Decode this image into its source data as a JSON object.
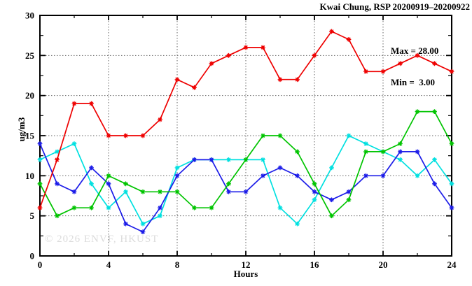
{
  "chart_data": {
    "type": "line",
    "title": "Kwai Chung, RSP 20200919–20200922",
    "xlabel": "Hours",
    "ylabel": "ug/m3",
    "xlim": [
      0,
      24
    ],
    "ylim": [
      0,
      30
    ],
    "x_ticks": [
      0,
      4,
      8,
      12,
      16,
      20,
      24
    ],
    "y_ticks": [
      0,
      5,
      10,
      15,
      20,
      25,
      30
    ],
    "x_minor_step": 2,
    "y_minor_step": 2.5,
    "grid": true,
    "x": [
      0,
      1,
      2,
      3,
      4,
      5,
      6,
      7,
      8,
      9,
      10,
      11,
      12,
      13,
      14,
      15,
      16,
      17,
      18,
      19,
      20,
      21,
      22,
      23,
      24
    ],
    "series": [
      {
        "name": "cyan-line",
        "color": "#00e0e0",
        "values": [
          12,
          13,
          14,
          9,
          6,
          8,
          4,
          5,
          11,
          12,
          12,
          12,
          12,
          12,
          6,
          4,
          7,
          11,
          15,
          14,
          13,
          12,
          10,
          12,
          9
        ]
      },
      {
        "name": "blue-line",
        "color": "#1c1ce8",
        "values": [
          14,
          9,
          8,
          11,
          9,
          4,
          3,
          6,
          10,
          12,
          12,
          8,
          8,
          10,
          11,
          10,
          8,
          7,
          8,
          10,
          10,
          13,
          13,
          9,
          6
        ]
      },
      {
        "name": "green-line",
        "color": "#00c400",
        "values": [
          9,
          5,
          6,
          6,
          10,
          9,
          8,
          8,
          8,
          6,
          6,
          9,
          12,
          15,
          15,
          13,
          9,
          5,
          7,
          13,
          13,
          14,
          18,
          18,
          14
        ]
      },
      {
        "name": "red-line",
        "color": "#ee0000",
        "values": [
          6,
          12,
          19,
          19,
          15,
          15,
          15,
          17,
          22,
          21,
          24,
          25,
          26,
          26,
          22,
          22,
          25,
          28,
          27,
          23,
          23,
          24,
          25,
          24,
          23
        ]
      }
    ]
  },
  "legend": {
    "max_label": "Max = 28.00",
    "min_label": "Min =  3.00"
  },
  "watermark": "© 2026 ENVF, HKUST"
}
